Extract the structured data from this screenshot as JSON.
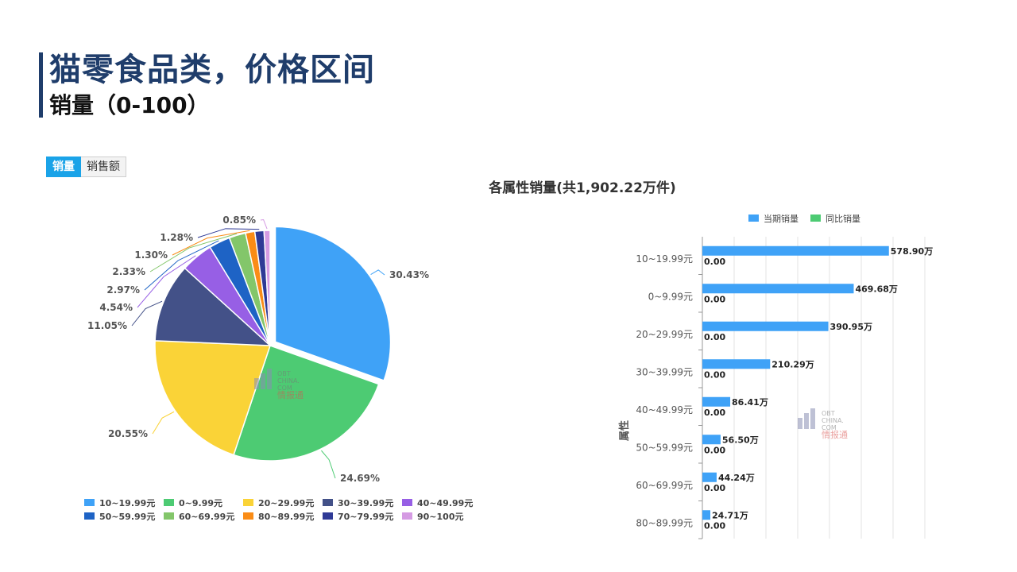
{
  "header": {
    "title": "猫零食品类，价格区间",
    "subtitle": "销量（0-100）"
  },
  "tabs": [
    {
      "label": "销量",
      "active": true
    },
    {
      "label": "销售额",
      "active": false
    }
  ],
  "watermark": {
    "line1": "OBT",
    "line2": "CHINA.",
    "line3": "COM",
    "brand": "情报通"
  },
  "chart_data": [
    {
      "type": "pie",
      "slices": [
        {
          "name": "10~19.99元",
          "value": 30.43,
          "label": "30.43%",
          "color": "#3fa2f7"
        },
        {
          "name": "0~9.99元",
          "value": 24.69,
          "label": "24.69%",
          "color": "#4dcb73"
        },
        {
          "name": "20~29.99元",
          "value": 20.55,
          "label": "20.55%",
          "color": "#fad337"
        },
        {
          "name": "30~39.99元",
          "value": 11.05,
          "label": "11.05%",
          "color": "#435188"
        },
        {
          "name": "40~49.99元",
          "value": 4.54,
          "label": "4.54%",
          "color": "#975fe5"
        },
        {
          "name": "50~59.99元",
          "value": 2.97,
          "label": "2.97%",
          "color": "#1e63c5"
        },
        {
          "name": "60~69.99元",
          "value": 2.33,
          "label": "2.33%",
          "color": "#83c66a"
        },
        {
          "name": "80~89.99元",
          "value": 1.3,
          "label": "1.30%",
          "color": "#fa8c16"
        },
        {
          "name": "70~79.99元",
          "value": 1.28,
          "label": "1.28%",
          "color": "#2f3a96"
        },
        {
          "name": "90~100元",
          "value": 0.85,
          "label": "0.85%",
          "color": "#d59be3"
        }
      ],
      "legend_placement": "bottom"
    },
    {
      "type": "bar",
      "orientation": "horizontal",
      "title": "各属性销量(共1,902.22万件)",
      "ylabel": "属性",
      "legend": [
        "当期销量",
        "同比销量"
      ],
      "legend_colors": [
        "#3fa2f7",
        "#4dcb73"
      ],
      "categories": [
        "10~19.99元",
        "0~9.99元",
        "20~29.99元",
        "30~39.99元",
        "40~49.99元",
        "50~59.99元",
        "60~69.99元",
        "80~89.99元"
      ],
      "series": [
        {
          "name": "当期销量",
          "values": [
            578.9,
            469.68,
            390.95,
            210.29,
            86.41,
            56.5,
            44.24,
            24.71
          ],
          "labels": [
            "578.90万",
            "469.68万",
            "390.95万",
            "210.29万",
            "86.41万",
            "56.50万",
            "44.24万",
            "24.71万"
          ]
        },
        {
          "name": "同比销量",
          "values": [
            0,
            0,
            0,
            0,
            0,
            0,
            0,
            0
          ],
          "labels": [
            "0.00",
            "0.00",
            "0.00",
            "0.00",
            "0.00",
            "0.00",
            "0.00",
            "0.00"
          ]
        }
      ],
      "xlim": [
        0,
        720
      ],
      "grid": true
    }
  ]
}
